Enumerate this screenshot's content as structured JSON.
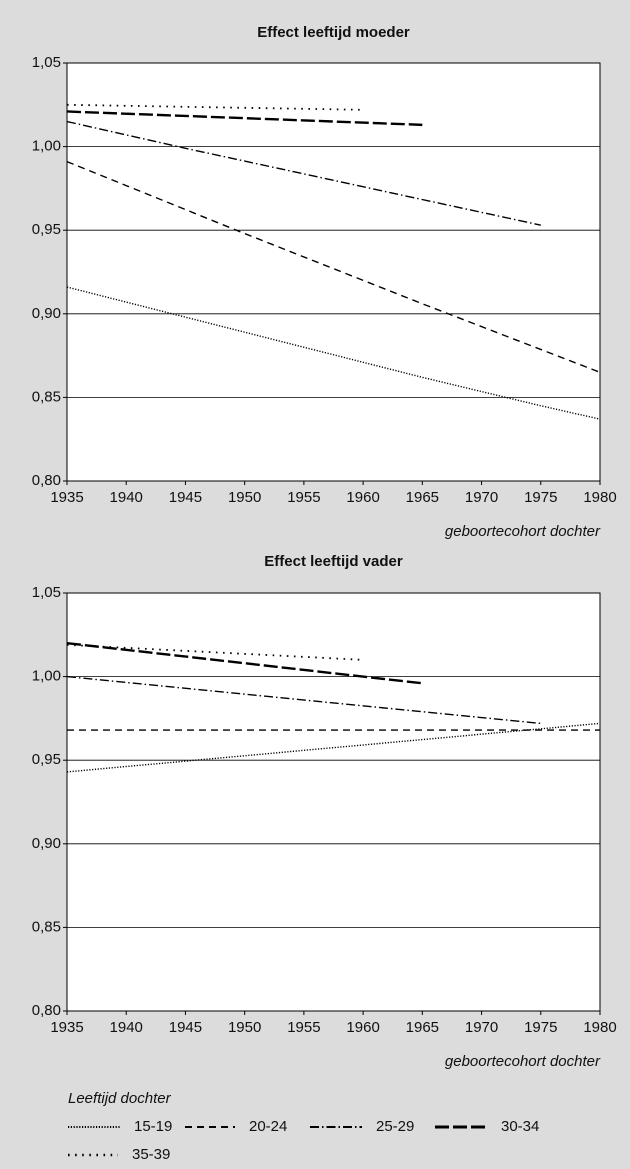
{
  "chart_data": [
    {
      "type": "line",
      "title": "Effect leeftijd moeder",
      "x_label": "geboortecohort dochter",
      "xlim": [
        1935,
        1980
      ],
      "xticks": [
        1935,
        1940,
        1945,
        1950,
        1955,
        1960,
        1965,
        1970,
        1975,
        1980
      ],
      "ylim": [
        0.8,
        1.05
      ],
      "yticks": [
        {
          "value": 0.8,
          "label": "0,80"
        },
        {
          "value": 0.85,
          "label": "0,85"
        },
        {
          "value": 0.9,
          "label": "0,90"
        },
        {
          "value": 0.95,
          "label": "0,95"
        },
        {
          "value": 1.0,
          "label": "1,00"
        },
        {
          "value": 1.05,
          "label": "1,05"
        }
      ],
      "grid": true,
      "series": [
        {
          "name": "15-19",
          "color": "#000000",
          "style": "dotted",
          "x": [
            1935,
            1945,
            1955,
            1965,
            1975,
            1980
          ],
          "values": [
            0.916,
            0.898,
            0.88,
            0.862,
            0.845,
            0.837
          ]
        },
        {
          "name": "20-24",
          "color": "#000000",
          "style": "dashed",
          "x": [
            1935,
            1950,
            1965,
            1980
          ],
          "values": [
            0.991,
            0.948,
            0.906,
            0.865
          ]
        },
        {
          "name": "25-29",
          "color": "#000000",
          "style": "dashdot",
          "x": [
            1935,
            1945,
            1960,
            1975
          ],
          "values": [
            1.015,
            0.999,
            0.976,
            0.953
          ]
        },
        {
          "name": "30-34",
          "color": "#000000",
          "style": "longdash",
          "x": [
            1935,
            1965
          ],
          "values": [
            1.021,
            1.013
          ]
        },
        {
          "name": "35-39",
          "color": "#000000",
          "style": "sparse",
          "x": [
            1935,
            1960
          ],
          "values": [
            1.025,
            1.022
          ]
        }
      ]
    },
    {
      "type": "line",
      "title": "Effect leeftijd vader",
      "x_label": "geboortecohort dochter",
      "xlim": [
        1935,
        1980
      ],
      "xticks": [
        1935,
        1940,
        1945,
        1950,
        1955,
        1960,
        1965,
        1970,
        1975,
        1980
      ],
      "ylim": [
        0.8,
        1.05
      ],
      "yticks": [
        {
          "value": 0.8,
          "label": "0,80"
        },
        {
          "value": 0.85,
          "label": "0,85"
        },
        {
          "value": 0.9,
          "label": "0,90"
        },
        {
          "value": 0.95,
          "label": "0,95"
        },
        {
          "value": 1.0,
          "label": "1,00"
        },
        {
          "value": 1.05,
          "label": "1,05"
        }
      ],
      "grid": true,
      "series": [
        {
          "name": "15-19",
          "color": "#000000",
          "style": "dotted",
          "x": [
            1935,
            1980
          ],
          "values": [
            0.943,
            0.972
          ]
        },
        {
          "name": "20-24",
          "color": "#000000",
          "style": "dashed",
          "x": [
            1935,
            1980
          ],
          "values": [
            0.968,
            0.968
          ]
        },
        {
          "name": "25-29",
          "color": "#000000",
          "style": "dashdot",
          "x": [
            1935,
            1975
          ],
          "values": [
            1.0,
            0.972
          ]
        },
        {
          "name": "30-34",
          "color": "#000000",
          "style": "longdash",
          "x": [
            1935,
            1965
          ],
          "values": [
            1.02,
            0.996
          ]
        },
        {
          "name": "35-39",
          "color": "#000000",
          "style": "sparse",
          "x": [
            1935,
            1960
          ],
          "values": [
            1.019,
            1.01
          ]
        }
      ]
    }
  ],
  "legend": {
    "title": "Leeftijd dochter"
  }
}
